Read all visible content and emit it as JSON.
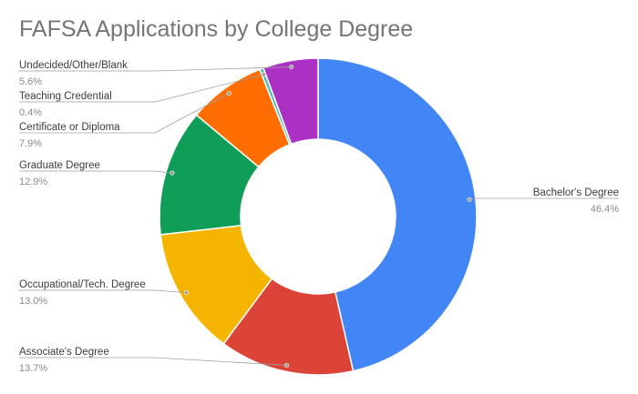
{
  "chart_data": {
    "type": "pie",
    "donut": true,
    "title": "FAFSA Applications by College Degree",
    "slices": [
      {
        "label": "Bachelor's Degree",
        "value": 46.4,
        "display": "46.4%",
        "color": "#4285F4"
      },
      {
        "label": "Associate's Degree",
        "value": 13.7,
        "display": "13.7%",
        "color": "#DB4437"
      },
      {
        "label": "Occupational/Tech. Degree",
        "value": 13.0,
        "display": "13.0%",
        "color": "#F4B400"
      },
      {
        "label": "Graduate Degree",
        "value": 12.9,
        "display": "12.9%",
        "color": "#0F9D58"
      },
      {
        "label": "Certificate or Diploma",
        "value": 7.9,
        "display": "7.9%",
        "color": "#FF6D00"
      },
      {
        "label": "Teaching Credential",
        "value": 0.4,
        "display": "0.4%",
        "color": "#46BDC6"
      },
      {
        "label": "Undecided/Other/Blank",
        "value": 5.6,
        "display": "5.6%",
        "color": "#AB30C4"
      }
    ],
    "legend": "labeled slices"
  }
}
